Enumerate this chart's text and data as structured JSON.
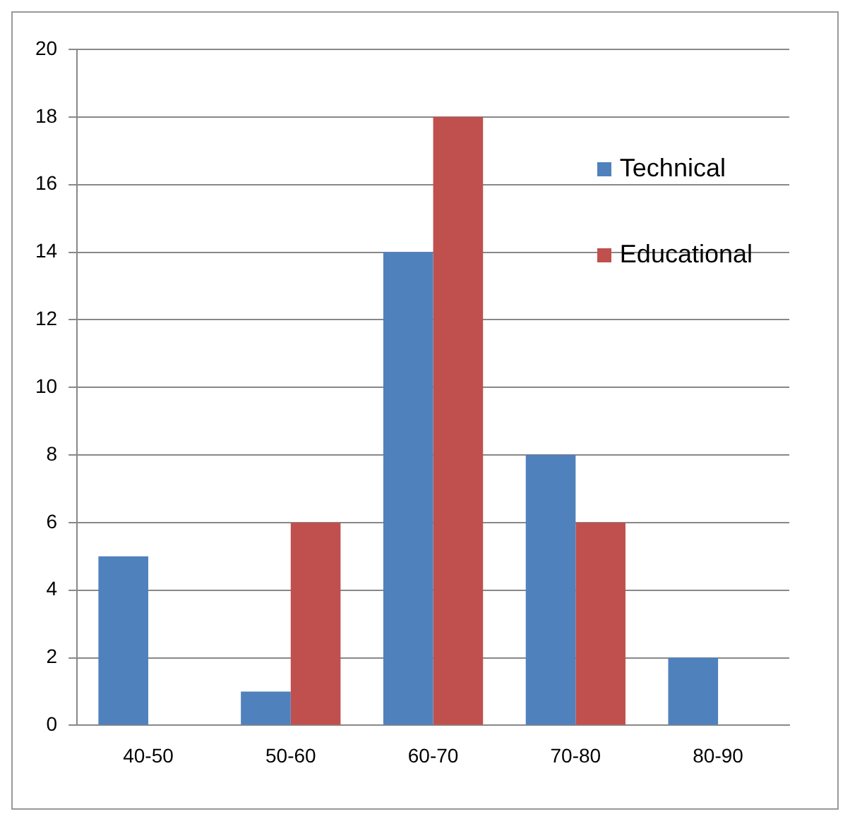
{
  "chart_data": {
    "type": "bar",
    "categories": [
      "40-50",
      "50-60",
      "60-70",
      "70-80",
      "80-90"
    ],
    "series": [
      {
        "name": "Technical",
        "color": "#4f81bd",
        "values": [
          5,
          1,
          14,
          8,
          2
        ]
      },
      {
        "name": "Educational",
        "color": "#c0504d",
        "values": [
          0,
          6,
          18,
          6,
          0
        ]
      }
    ],
    "ylim": [
      0,
      20
    ],
    "yticks": [
      0,
      2,
      4,
      6,
      8,
      10,
      12,
      14,
      16,
      18,
      20
    ],
    "grid": "y",
    "legend": "top right"
  }
}
